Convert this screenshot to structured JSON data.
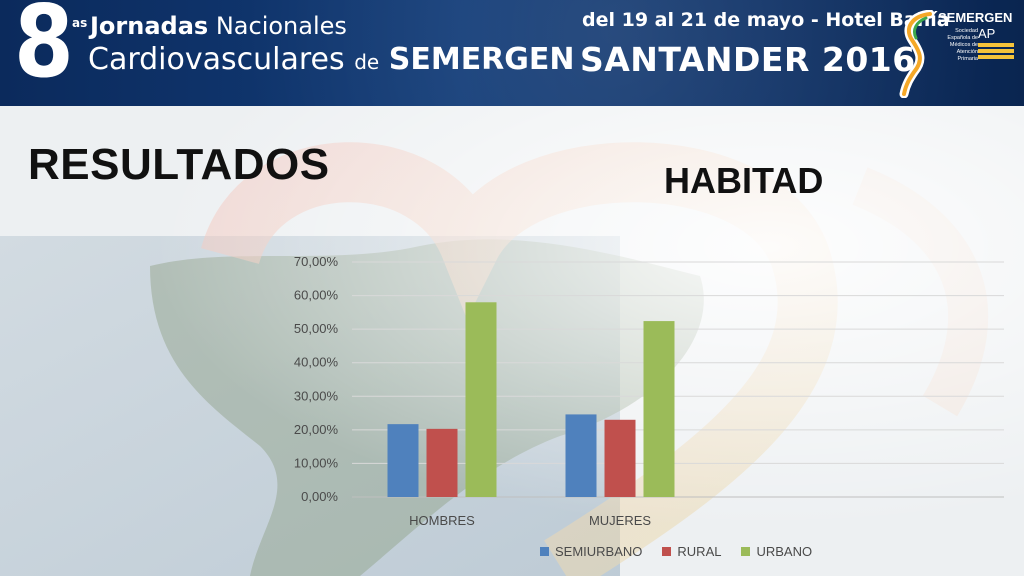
{
  "header": {
    "number": "8",
    "ordinal": "as",
    "line1_bold": "Jornadas",
    "line1_rest": "Nacionales",
    "line2_main": "Cardiovasculares",
    "line2_de": "de",
    "line2_brand": "SEMERGEN",
    "dates": "del 19 al 21 de mayo - Hotel Bahía",
    "city_year": "SANTANDER 2016",
    "logo": {
      "brand": "SEMERGEN",
      "ap": "AP",
      "subtitle": "Sociedad Española de Médicos de Atención Primaria"
    }
  },
  "slide": {
    "title": "RESULTADOS",
    "subtitle": "HABITAD"
  },
  "chart_data": {
    "type": "bar",
    "categories": [
      "HOMBRES",
      "MUJERES"
    ],
    "series": [
      {
        "name": "SEMIURBANO",
        "values": [
          21.7,
          24.6
        ],
        "color": "#4f81bd"
      },
      {
        "name": "RURAL",
        "values": [
          20.3,
          23.0
        ],
        "color": "#c0504d"
      },
      {
        "name": "URBANO",
        "values": [
          58.0,
          52.4
        ],
        "color": "#9bbb59"
      }
    ],
    "ylim": [
      0,
      70
    ],
    "yticks": [
      "0,00%",
      "10,00%",
      "20,00%",
      "30,00%",
      "40,00%",
      "50,00%",
      "60,00%",
      "70,00%"
    ],
    "grid": true,
    "legend_position": "bottom"
  }
}
